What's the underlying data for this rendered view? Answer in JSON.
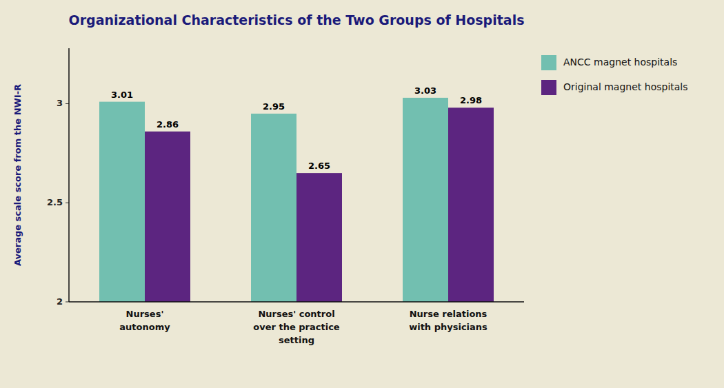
{
  "chart_data": {
    "type": "bar",
    "title": "Organizational Characteristics of the Two Groups of Hospitals",
    "ylabel": "Average scale score from the NWI-R",
    "categories": [
      "Nurses'\nautonomy",
      "Nurses' control\nover the practice\nsetting",
      "Nurse relations\nwith physicians"
    ],
    "series": [
      {
        "name": "ANCC magnet hospitals",
        "color": "#72bfb0",
        "values": [
          3.01,
          2.95,
          3.03
        ]
      },
      {
        "name": "Original magnet hospitals",
        "color": "#5c2580",
        "values": [
          2.86,
          2.65,
          2.98
        ]
      }
    ],
    "ylim": [
      2.0,
      3.28
    ],
    "yticks": [
      2,
      2.5,
      3
    ],
    "grid": false,
    "legend": "upper right",
    "data_labels": true
  }
}
